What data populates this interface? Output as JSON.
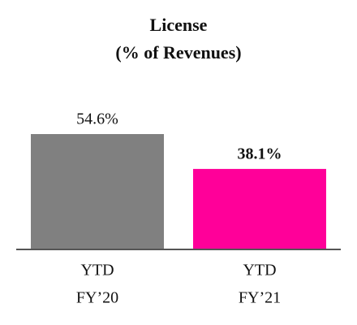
{
  "chart_data": {
    "type": "bar",
    "title": "License",
    "subtitle": "(% of Revenues)",
    "categories": [
      [
        "YTD",
        "FY’20"
      ],
      [
        "YTD",
        "FY’21"
      ]
    ],
    "values": [
      54.6,
      38.1
    ],
    "value_labels": [
      "54.6%",
      "38.1%"
    ],
    "colors": [
      "#808080",
      "#ff0099"
    ],
    "value_label_bold": [
      false,
      true
    ]
  }
}
